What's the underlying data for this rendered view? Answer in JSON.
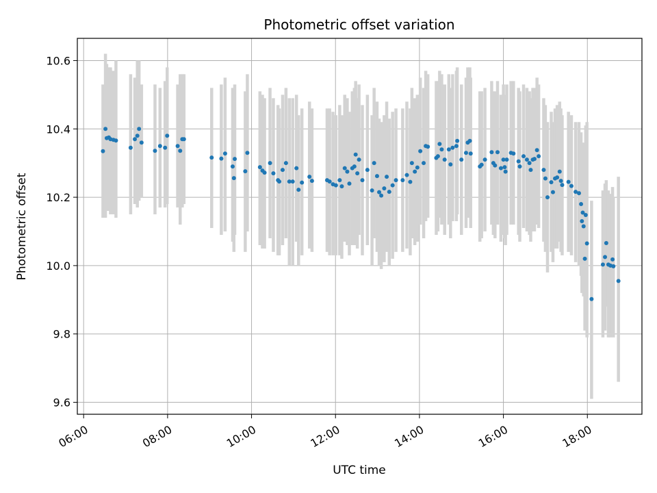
{
  "chart_data": {
    "type": "scatter",
    "title": "Photometric offset variation",
    "xlabel": "UTC time",
    "ylabel": "Photometric offset",
    "x_ticks": [
      "06:00",
      "08:00",
      "10:00",
      "12:00",
      "14:00",
      "16:00",
      "18:00"
    ],
    "x_tick_hours": [
      6,
      8,
      10,
      12,
      14,
      16,
      18
    ],
    "y_ticks": [
      "9.6",
      "9.8",
      "10.0",
      "10.2",
      "10.4",
      "10.6"
    ],
    "y_tick_values": [
      9.6,
      9.8,
      10.0,
      10.2,
      10.4,
      10.6
    ],
    "xlim": [
      5.85,
      19.3
    ],
    "ylim": [
      9.565,
      10.665
    ],
    "grid": true,
    "point_color": "#1f77b4",
    "errorbar_color": "#d3d3d3",
    "x_unit": "hours UTC",
    "points": [
      [
        6.46,
        10.335,
        10.53,
        10.14
      ],
      [
        6.52,
        10.4,
        10.62,
        10.14
      ],
      [
        6.55,
        10.373,
        10.59,
        10.16
      ],
      [
        6.6,
        10.375,
        10.58,
        10.16
      ],
      [
        6.64,
        10.37,
        10.58,
        10.15
      ],
      [
        6.71,
        10.368,
        10.57,
        10.15
      ],
      [
        6.77,
        10.366,
        10.6,
        10.14
      ],
      [
        7.12,
        10.345,
        10.56,
        10.15
      ],
      [
        7.22,
        10.37,
        10.55,
        10.18
      ],
      [
        7.28,
        10.38,
        10.6,
        10.17
      ],
      [
        7.32,
        10.4,
        10.6,
        10.19
      ],
      [
        7.38,
        10.36,
        10.53,
        10.2
      ],
      [
        7.7,
        10.336,
        10.53,
        10.15
      ],
      [
        7.82,
        10.35,
        10.52,
        10.17
      ],
      [
        7.94,
        10.345,
        10.54,
        10.17
      ],
      [
        7.99,
        10.38,
        10.58,
        10.18
      ],
      [
        8.24,
        10.35,
        10.53,
        10.17
      ],
      [
        8.3,
        10.336,
        10.56,
        10.12
      ],
      [
        8.35,
        10.37,
        10.56,
        10.17
      ],
      [
        8.39,
        10.37,
        10.56,
        10.18
      ],
      [
        9.05,
        10.316,
        10.52,
        10.11
      ],
      [
        9.28,
        10.313,
        10.53,
        10.09
      ],
      [
        9.37,
        10.328,
        10.55,
        10.1
      ],
      [
        9.55,
        10.29,
        10.52,
        10.07
      ],
      [
        9.58,
        10.256,
        10.47,
        10.04
      ],
      [
        9.6,
        10.312,
        10.53,
        10.09
      ],
      [
        9.85,
        10.276,
        10.51,
        10.04
      ],
      [
        9.9,
        10.33,
        10.56,
        10.1
      ],
      [
        10.2,
        10.288,
        10.51,
        10.06
      ],
      [
        10.26,
        10.278,
        10.5,
        10.05
      ],
      [
        10.31,
        10.272,
        10.49,
        10.05
      ],
      [
        10.44,
        10.3,
        10.52,
        10.08
      ],
      [
        10.52,
        10.27,
        10.49,
        10.04
      ],
      [
        10.63,
        10.25,
        10.47,
        10.03
      ],
      [
        10.66,
        10.246,
        10.46,
        10.03
      ],
      [
        10.74,
        10.28,
        10.5,
        10.06
      ],
      [
        10.82,
        10.3,
        10.52,
        10.08
      ],
      [
        10.9,
        10.246,
        10.49,
        10.0
      ],
      [
        10.98,
        10.246,
        10.49,
        10.0
      ],
      [
        11.07,
        10.285,
        10.5,
        10.07
      ],
      [
        11.12,
        10.222,
        10.44,
        10.0
      ],
      [
        11.2,
        10.243,
        10.46,
        10.03
      ],
      [
        11.38,
        10.26,
        10.48,
        10.05
      ],
      [
        11.44,
        10.248,
        10.46,
        10.04
      ],
      [
        11.8,
        10.25,
        10.46,
        10.04
      ],
      [
        11.86,
        10.246,
        10.46,
        10.03
      ],
      [
        11.94,
        10.238,
        10.45,
        10.03
      ],
      [
        12.01,
        10.235,
        10.44,
        10.03
      ],
      [
        12.1,
        10.25,
        10.47,
        10.03
      ],
      [
        12.15,
        10.232,
        10.44,
        10.02
      ],
      [
        12.22,
        10.285,
        10.5,
        10.07
      ],
      [
        12.28,
        10.275,
        10.49,
        10.06
      ],
      [
        12.33,
        10.24,
        10.45,
        10.03
      ],
      [
        12.4,
        10.285,
        10.51,
        10.06
      ],
      [
        12.45,
        10.29,
        10.52,
        10.06
      ],
      [
        12.48,
        10.325,
        10.54,
        10.11
      ],
      [
        12.52,
        10.27,
        10.49,
        10.05
      ],
      [
        12.56,
        10.31,
        10.53,
        10.09
      ],
      [
        12.64,
        10.25,
        10.47,
        10.03
      ],
      [
        12.76,
        10.28,
        10.5,
        10.06
      ],
      [
        12.87,
        10.22,
        10.44,
        10.0
      ],
      [
        12.92,
        10.3,
        10.52,
        10.08
      ],
      [
        12.99,
        10.262,
        10.48,
        10.04
      ],
      [
        13.04,
        10.215,
        10.43,
        10.0
      ],
      [
        13.09,
        10.205,
        10.42,
        9.99
      ],
      [
        13.16,
        10.226,
        10.44,
        10.01
      ],
      [
        13.22,
        10.26,
        10.48,
        10.04
      ],
      [
        13.28,
        10.216,
        10.43,
        10.0
      ],
      [
        13.36,
        10.235,
        10.45,
        10.02
      ],
      [
        13.44,
        10.25,
        10.46,
        10.04
      ],
      [
        13.6,
        10.25,
        10.46,
        10.04
      ],
      [
        13.7,
        10.265,
        10.48,
        10.05
      ],
      [
        13.78,
        10.245,
        10.46,
        10.03
      ],
      [
        13.82,
        10.3,
        10.52,
        10.08
      ],
      [
        13.89,
        10.275,
        10.49,
        10.06
      ],
      [
        13.95,
        10.287,
        10.5,
        10.07
      ],
      [
        14.02,
        10.335,
        10.55,
        10.12
      ],
      [
        14.1,
        10.3,
        10.52,
        10.08
      ],
      [
        14.15,
        10.35,
        10.57,
        10.13
      ],
      [
        14.2,
        10.348,
        10.56,
        10.14
      ],
      [
        14.4,
        10.315,
        10.54,
        10.09
      ],
      [
        14.44,
        10.32,
        10.54,
        10.1
      ],
      [
        14.48,
        10.356,
        10.57,
        10.14
      ],
      [
        14.53,
        10.34,
        10.56,
        10.12
      ],
      [
        14.6,
        10.31,
        10.53,
        10.09
      ],
      [
        14.7,
        10.34,
        10.56,
        10.12
      ],
      [
        14.74,
        10.296,
        10.52,
        10.08
      ],
      [
        14.79,
        10.345,
        10.56,
        10.13
      ],
      [
        14.88,
        10.35,
        10.57,
        10.13
      ],
      [
        14.9,
        10.365,
        10.58,
        10.15
      ],
      [
        15.0,
        10.31,
        10.53,
        10.09
      ],
      [
        15.11,
        10.33,
        10.55,
        10.11
      ],
      [
        15.15,
        10.36,
        10.58,
        10.14
      ],
      [
        15.2,
        10.365,
        10.58,
        10.15
      ],
      [
        15.22,
        10.328,
        10.55,
        10.11
      ],
      [
        15.44,
        10.29,
        10.51,
        10.07
      ],
      [
        15.48,
        10.295,
        10.51,
        10.08
      ],
      [
        15.56,
        10.31,
        10.52,
        10.1
      ],
      [
        15.72,
        10.332,
        10.54,
        10.12
      ],
      [
        15.76,
        10.3,
        10.51,
        10.09
      ],
      [
        15.8,
        10.293,
        10.51,
        10.08
      ],
      [
        15.86,
        10.332,
        10.54,
        10.12
      ],
      [
        15.94,
        10.285,
        10.5,
        10.07
      ],
      [
        16.0,
        10.31,
        10.53,
        10.09
      ],
      [
        16.03,
        10.288,
        10.5,
        10.08
      ],
      [
        16.05,
        10.275,
        10.49,
        10.06
      ],
      [
        16.08,
        10.31,
        10.53,
        10.09
      ],
      [
        16.18,
        10.33,
        10.54,
        10.12
      ],
      [
        16.24,
        10.328,
        10.54,
        10.12
      ],
      [
        16.36,
        10.305,
        10.52,
        10.09
      ],
      [
        16.39,
        10.29,
        10.51,
        10.07
      ],
      [
        16.48,
        10.32,
        10.53,
        10.11
      ],
      [
        16.56,
        10.31,
        10.52,
        10.1
      ],
      [
        16.62,
        10.3,
        10.51,
        10.09
      ],
      [
        16.65,
        10.28,
        10.49,
        10.07
      ],
      [
        16.7,
        10.31,
        10.52,
        10.1
      ],
      [
        16.74,
        10.312,
        10.52,
        10.1
      ],
      [
        16.8,
        10.338,
        10.55,
        10.12
      ],
      [
        16.84,
        10.32,
        10.53,
        10.11
      ],
      [
        16.96,
        10.28,
        10.49,
        10.07
      ],
      [
        17.0,
        10.255,
        10.47,
        10.04
      ],
      [
        17.05,
        10.2,
        10.42,
        9.98
      ],
      [
        17.14,
        10.244,
        10.45,
        10.04
      ],
      [
        17.18,
        10.215,
        10.42,
        10.01
      ],
      [
        17.23,
        10.255,
        10.46,
        10.05
      ],
      [
        17.28,
        10.258,
        10.47,
        10.05
      ],
      [
        17.34,
        10.275,
        10.48,
        10.07
      ],
      [
        17.37,
        10.248,
        10.46,
        10.04
      ],
      [
        17.4,
        10.236,
        10.44,
        10.03
      ],
      [
        17.55,
        10.245,
        10.45,
        10.04
      ],
      [
        17.62,
        10.233,
        10.44,
        10.03
      ],
      [
        17.72,
        10.216,
        10.42,
        10.01
      ],
      [
        17.8,
        10.212,
        10.42,
        10.0
      ],
      [
        17.85,
        10.18,
        10.39,
        9.97
      ],
      [
        17.87,
        10.13,
        10.34,
        9.92
      ],
      [
        17.89,
        10.155,
        10.36,
        9.95
      ],
      [
        17.91,
        10.115,
        10.32,
        9.91
      ],
      [
        17.94,
        10.02,
        10.23,
        9.81
      ],
      [
        17.96,
        10.148,
        10.41,
        9.88
      ],
      [
        17.99,
        10.065,
        10.42,
        9.79
      ],
      [
        18.1,
        9.902,
        10.19,
        9.61
      ],
      [
        18.37,
        10.003,
        10.22,
        9.79
      ],
      [
        18.42,
        10.025,
        10.24,
        9.81
      ],
      [
        18.45,
        10.066,
        10.25,
        9.88
      ],
      [
        18.5,
        10.003,
        10.22,
        9.79
      ],
      [
        18.55,
        10.0,
        10.21,
        9.79
      ],
      [
        18.6,
        10.018,
        10.23,
        9.8
      ],
      [
        18.62,
        9.998,
        10.2,
        9.79
      ],
      [
        18.74,
        9.955,
        10.26,
        9.66
      ]
    ]
  }
}
